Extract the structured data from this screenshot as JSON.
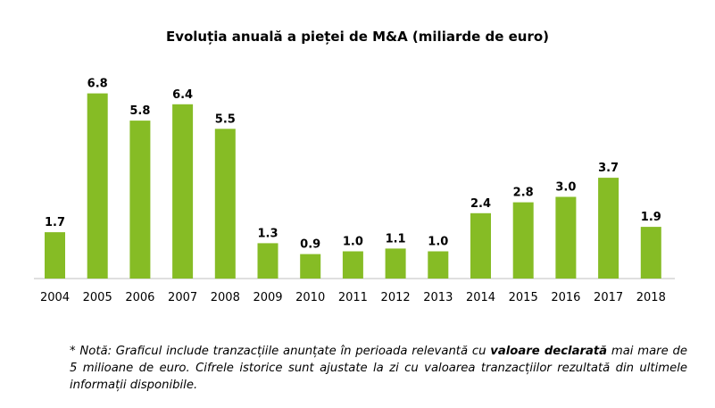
{
  "chart_data": {
    "type": "bar",
    "title": "Evoluția anuală a pieței de M&A (miliarde de euro)",
    "xlabel": "",
    "ylabel": "",
    "categories": [
      "2004",
      "2005",
      "2006",
      "2007",
      "2008",
      "2009",
      "2010",
      "2011",
      "2012",
      "2013",
      "2014",
      "2015",
      "2016",
      "2017",
      "2018"
    ],
    "values": [
      1.7,
      6.8,
      5.8,
      6.4,
      5.5,
      1.3,
      0.9,
      1.0,
      1.1,
      1.0,
      2.4,
      2.8,
      3.0,
      3.7,
      1.9
    ],
    "value_labels": [
      "1.7",
      "6.8",
      "5.8",
      "6.4",
      "5.5",
      "1.3",
      "0.9",
      "1.0",
      "1.1",
      "1.0",
      "2.4",
      "2.8",
      "3.0",
      "3.7",
      "1.9"
    ],
    "ylim": [
      0,
      7
    ],
    "grid": false,
    "legend": "none",
    "bar_color": "#86bc25"
  },
  "note": {
    "part1": "* Notă: Graficul include tranzacțiile anunțate în perioada relevantă cu ",
    "bold": "valoare declarată",
    "part2": " mai mare de 5 milioane de euro. Cifrele istorice sunt ajustate la zi cu valoarea tranzacțiilor rezultată din ultimele informații disponibile."
  }
}
